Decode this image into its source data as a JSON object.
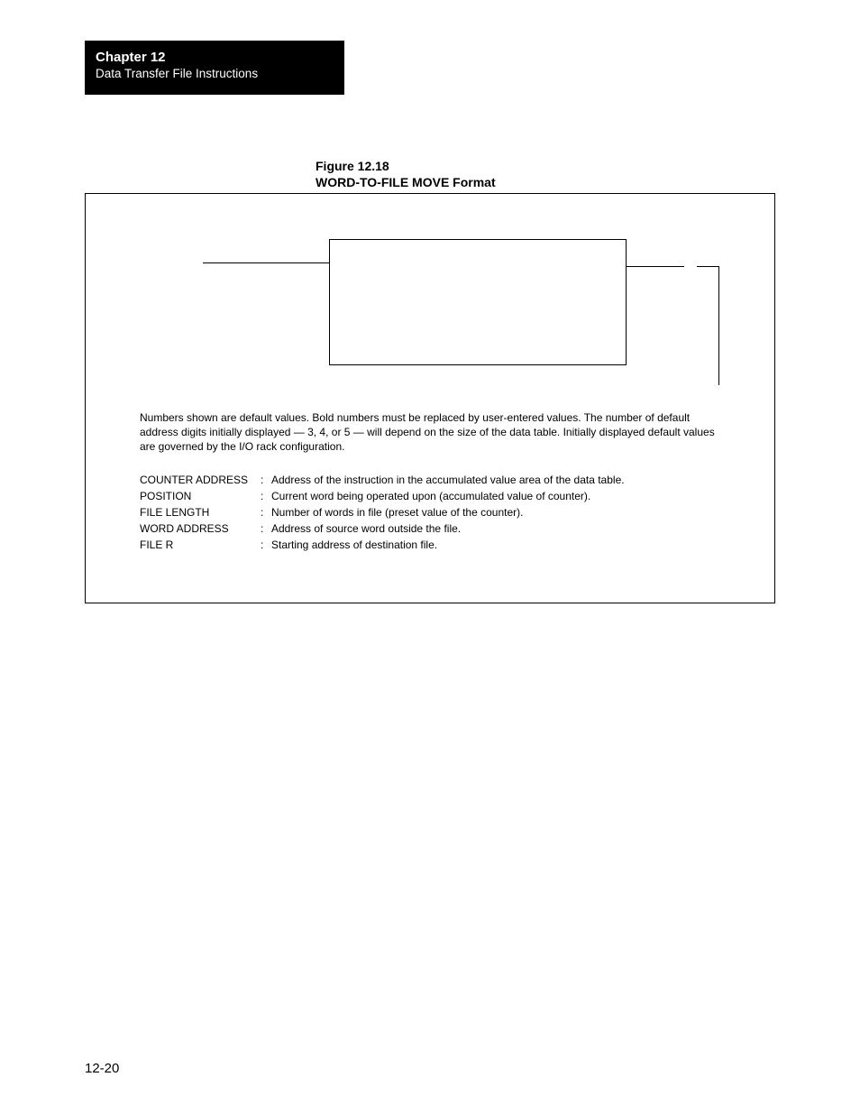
{
  "header": {
    "chapter": "Chapter 12",
    "subtitle": "Data Transfer File Instructions"
  },
  "figure": {
    "number": "Figure 12.18",
    "title": "WORD-TO-FILE MOVE Format",
    "caption": "Numbers shown are default values.  Bold numbers must be replaced by user-entered values.  The number of default address digits initially displayed — 3, 4, or 5 — will depend on the size of the data table.  Initially displayed default values are governed by the I/O rack configuration.",
    "definitions": [
      {
        "term": "COUNTER ADDRESS",
        "desc": "Address of the instruction in the accumulated value area of the data table."
      },
      {
        "term": "POSITION",
        "desc": "Current word being operated upon (accumulated value of counter)."
      },
      {
        "term": "FILE LENGTH",
        "desc": "Number of words in file (preset value of the counter)."
      },
      {
        "term": "WORD ADDRESS",
        "desc": "Address of source word outside the file."
      },
      {
        "term": "FILE R",
        "desc": "Starting address of destination file."
      }
    ],
    "frame_border_color": "#000000",
    "background_color": "#ffffff"
  },
  "page_number": "12-20",
  "colors": {
    "header_bg": "#000000",
    "header_text": "#ffffff",
    "text": "#000000"
  },
  "typography": {
    "body_font": "Arial, Helvetica, sans-serif",
    "header_chapter_size_pt": 11,
    "header_sub_size_pt": 10,
    "fig_title_size_pt": 10.5,
    "caption_size_pt": 9,
    "defs_size_pt": 9,
    "page_num_size_pt": 11
  }
}
